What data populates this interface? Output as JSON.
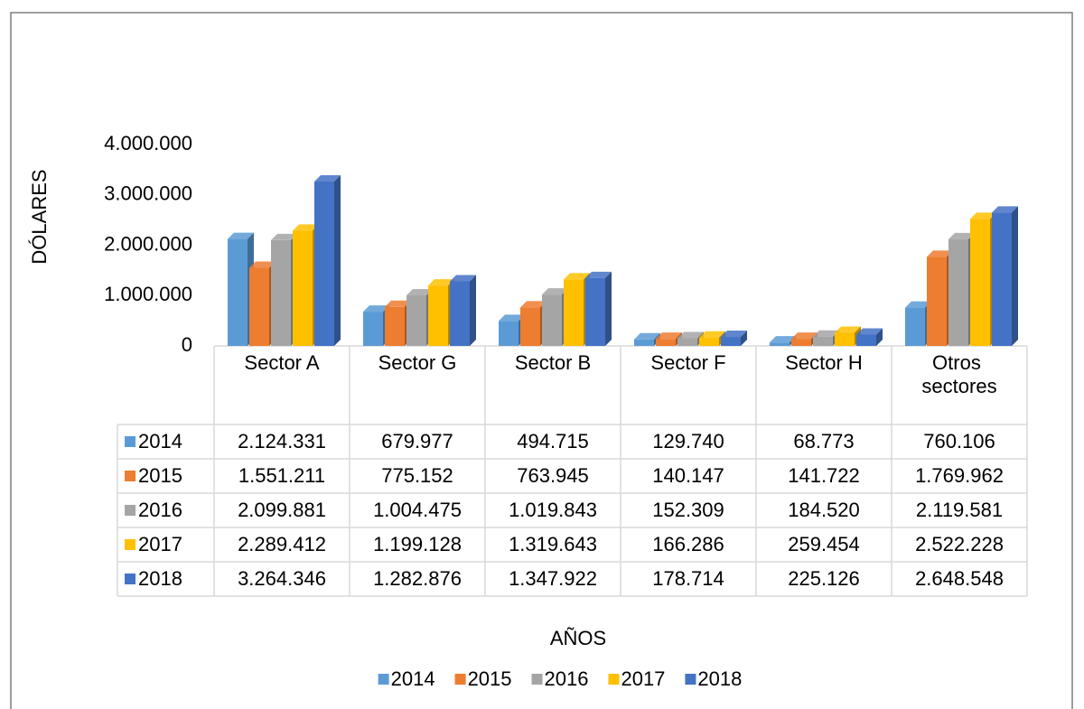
{
  "chart_data": {
    "type": "bar3d_table",
    "y_label": "DÓLARES",
    "x_label": "AÑOS",
    "categories": [
      "Sector A",
      "Sector G",
      "Sector B",
      "Sector F",
      "Sector H",
      "Otros sectores"
    ],
    "ylim": [
      0,
      4000000
    ],
    "yticks": [
      0,
      {
        "value": 1000000,
        "label": "1.000.000"
      },
      {
        "value": 2000000,
        "label": "2.000.000"
      },
      {
        "value": 3000000,
        "label": "3.000.000"
      },
      {
        "value": 4000000,
        "label": "4.000.000"
      }
    ],
    "legend": "bottom",
    "series": [
      {
        "name": "2014",
        "color": "#5b9bd5",
        "values": [
          2124331,
          679977,
          494715,
          129740,
          68773,
          760106
        ],
        "value_labels": [
          "2.124.331",
          "679.977",
          "494.715",
          "129.740",
          "68.773",
          "760.106"
        ]
      },
      {
        "name": "2015",
        "color": "#ed7d31",
        "values": [
          1551211,
          775152,
          763945,
          140147,
          141722,
          1769962
        ],
        "value_labels": [
          "1.551.211",
          "775.152",
          "763.945",
          "140.147",
          "141.722",
          "1.769.962"
        ]
      },
      {
        "name": "2016",
        "color": "#a5a5a5",
        "values": [
          2099881,
          1004475,
          1019843,
          152309,
          184520,
          2119581
        ],
        "value_labels": [
          "2.099.881",
          "1.004.475",
          "1.019.843",
          "152.309",
          "184.520",
          "2.119.581"
        ]
      },
      {
        "name": "2017",
        "color": "#ffc000",
        "values": [
          2289412,
          1199128,
          1319643,
          166286,
          259454,
          2522228
        ],
        "value_labels": [
          "2.289.412",
          "1.199.128",
          "1.319.643",
          "166.286",
          "259.454",
          "2.522.228"
        ]
      },
      {
        "name": "2018",
        "color": "#4472c4",
        "values": [
          3264346,
          1282876,
          1347922,
          178714,
          225126,
          2648548
        ],
        "value_labels": [
          "3.264.346",
          "1.282.876",
          "1.347.922",
          "178.714",
          "225.126",
          "2.648.548"
        ]
      }
    ]
  }
}
